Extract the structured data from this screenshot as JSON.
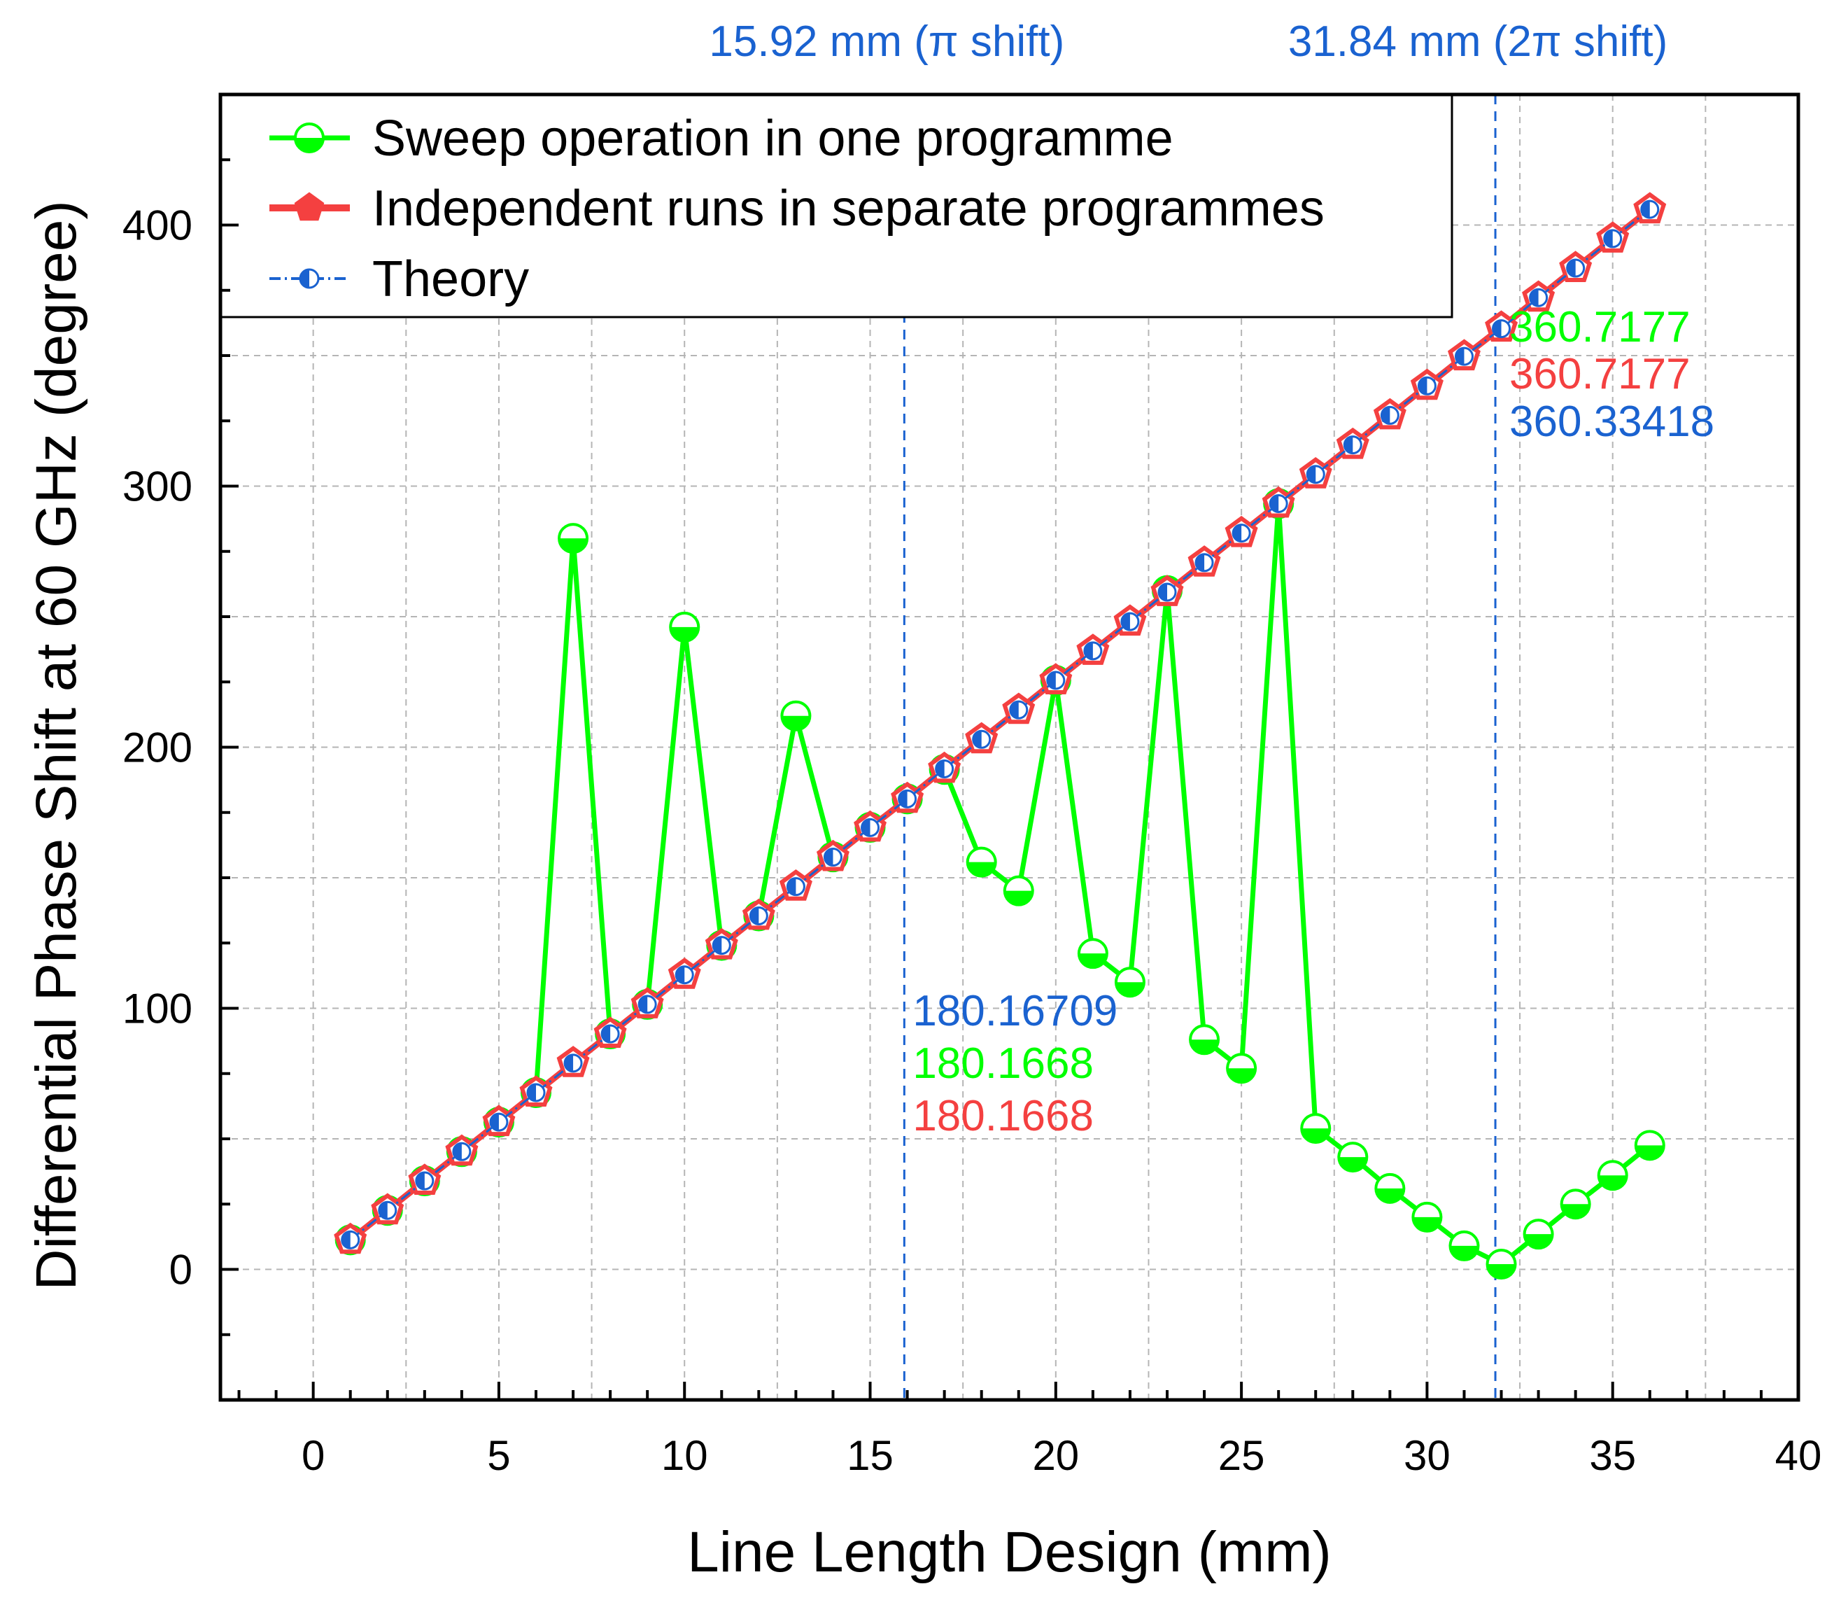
{
  "chart_data": {
    "type": "line",
    "xlabel": "Line Length Design (mm)",
    "ylabel": "Differential Phase Shift at 60 GHz (degree)",
    "xlim": [
      -2.5,
      40
    ],
    "ylim": [
      -50,
      450
    ],
    "xticks": [
      0,
      5,
      10,
      15,
      20,
      25,
      30,
      35,
      40
    ],
    "yticks": [
      0,
      100,
      200,
      300,
      400
    ],
    "grid": true,
    "legend_position": "top-left",
    "series": [
      {
        "name": "Sweep operation in one programme",
        "color": "#00ff00",
        "marker": "half-filled-circle",
        "x": [
          1,
          2,
          3,
          4,
          5,
          6,
          7,
          8,
          9,
          10,
          11,
          12,
          13,
          14,
          15,
          16,
          17,
          18,
          19,
          20,
          21,
          22,
          23,
          24,
          25,
          26,
          27,
          28,
          29,
          30,
          31,
          32,
          33,
          34,
          35,
          36
        ],
        "values": [
          11.3,
          22.6,
          33.9,
          45.1,
          56.4,
          67.7,
          280,
          90.2,
          101.5,
          246,
          124.1,
          135.4,
          212,
          158,
          169.3,
          180.2,
          191.5,
          156,
          145,
          225.6,
          121,
          110,
          260,
          88,
          77,
          293.3,
          54,
          43,
          31,
          20,
          9,
          2,
          13.5,
          25,
          36,
          47.5
        ]
      },
      {
        "name": "Independent runs in separate programmes",
        "color": "#f44040",
        "marker": "pentagon",
        "x": [
          1,
          2,
          3,
          4,
          5,
          6,
          7,
          8,
          9,
          10,
          11,
          12,
          13,
          14,
          15,
          16,
          17,
          18,
          19,
          20,
          21,
          22,
          23,
          24,
          25,
          26,
          27,
          28,
          29,
          30,
          31,
          32,
          33,
          34,
          35,
          36
        ],
        "values": [
          11.3,
          22.6,
          33.9,
          45.1,
          56.4,
          67.7,
          79,
          90.2,
          101.5,
          112.8,
          124.1,
          135.4,
          146.6,
          157.9,
          169.2,
          180.2,
          191.7,
          203,
          214.3,
          225.6,
          236.9,
          248.1,
          259.4,
          270.7,
          282,
          293.3,
          304.5,
          315.8,
          327.1,
          338.4,
          349.7,
          360.7,
          372.2,
          383.5,
          394.8,
          406
        ]
      },
      {
        "name": "Theory",
        "color": "#1a62d0",
        "marker": "half-filled-circle",
        "x": [
          1,
          2,
          3,
          4,
          5,
          6,
          7,
          8,
          9,
          10,
          11,
          12,
          13,
          14,
          15,
          16,
          17,
          18,
          19,
          20,
          21,
          22,
          23,
          24,
          25,
          26,
          27,
          28,
          29,
          30,
          31,
          32,
          33,
          34,
          35,
          36
        ],
        "values": [
          11.3,
          22.6,
          33.9,
          45.1,
          56.4,
          67.7,
          79,
          90.2,
          101.5,
          112.8,
          124.1,
          135.4,
          146.6,
          157.9,
          169.2,
          180.2,
          191.7,
          203,
          214.3,
          225.6,
          236.9,
          248.1,
          259.4,
          270.7,
          282,
          293.3,
          304.5,
          315.8,
          327.1,
          338.4,
          349.7,
          360.3,
          372.2,
          383.5,
          394.8,
          406
        ]
      }
    ],
    "reference_lines": [
      {
        "x": 15.92,
        "label": "15.92 mm (π shift)",
        "color": "#1a62d0"
      },
      {
        "x": 31.84,
        "label": "31.84 mm (2π shift)",
        "color": "#1a62d0"
      }
    ],
    "annotations": {
      "pi": [
        {
          "text": "180.16709",
          "color": "#1a62d0"
        },
        {
          "text": "180.1668",
          "color": "#00ff00"
        },
        {
          "text": "180.1668",
          "color": "#f44040"
        }
      ],
      "two_pi": [
        {
          "text": "360.7177",
          "color": "#00ff00"
        },
        {
          "text": "360.7177",
          "color": "#f44040"
        },
        {
          "text": "360.33418",
          "color": "#1a62d0"
        }
      ]
    }
  }
}
